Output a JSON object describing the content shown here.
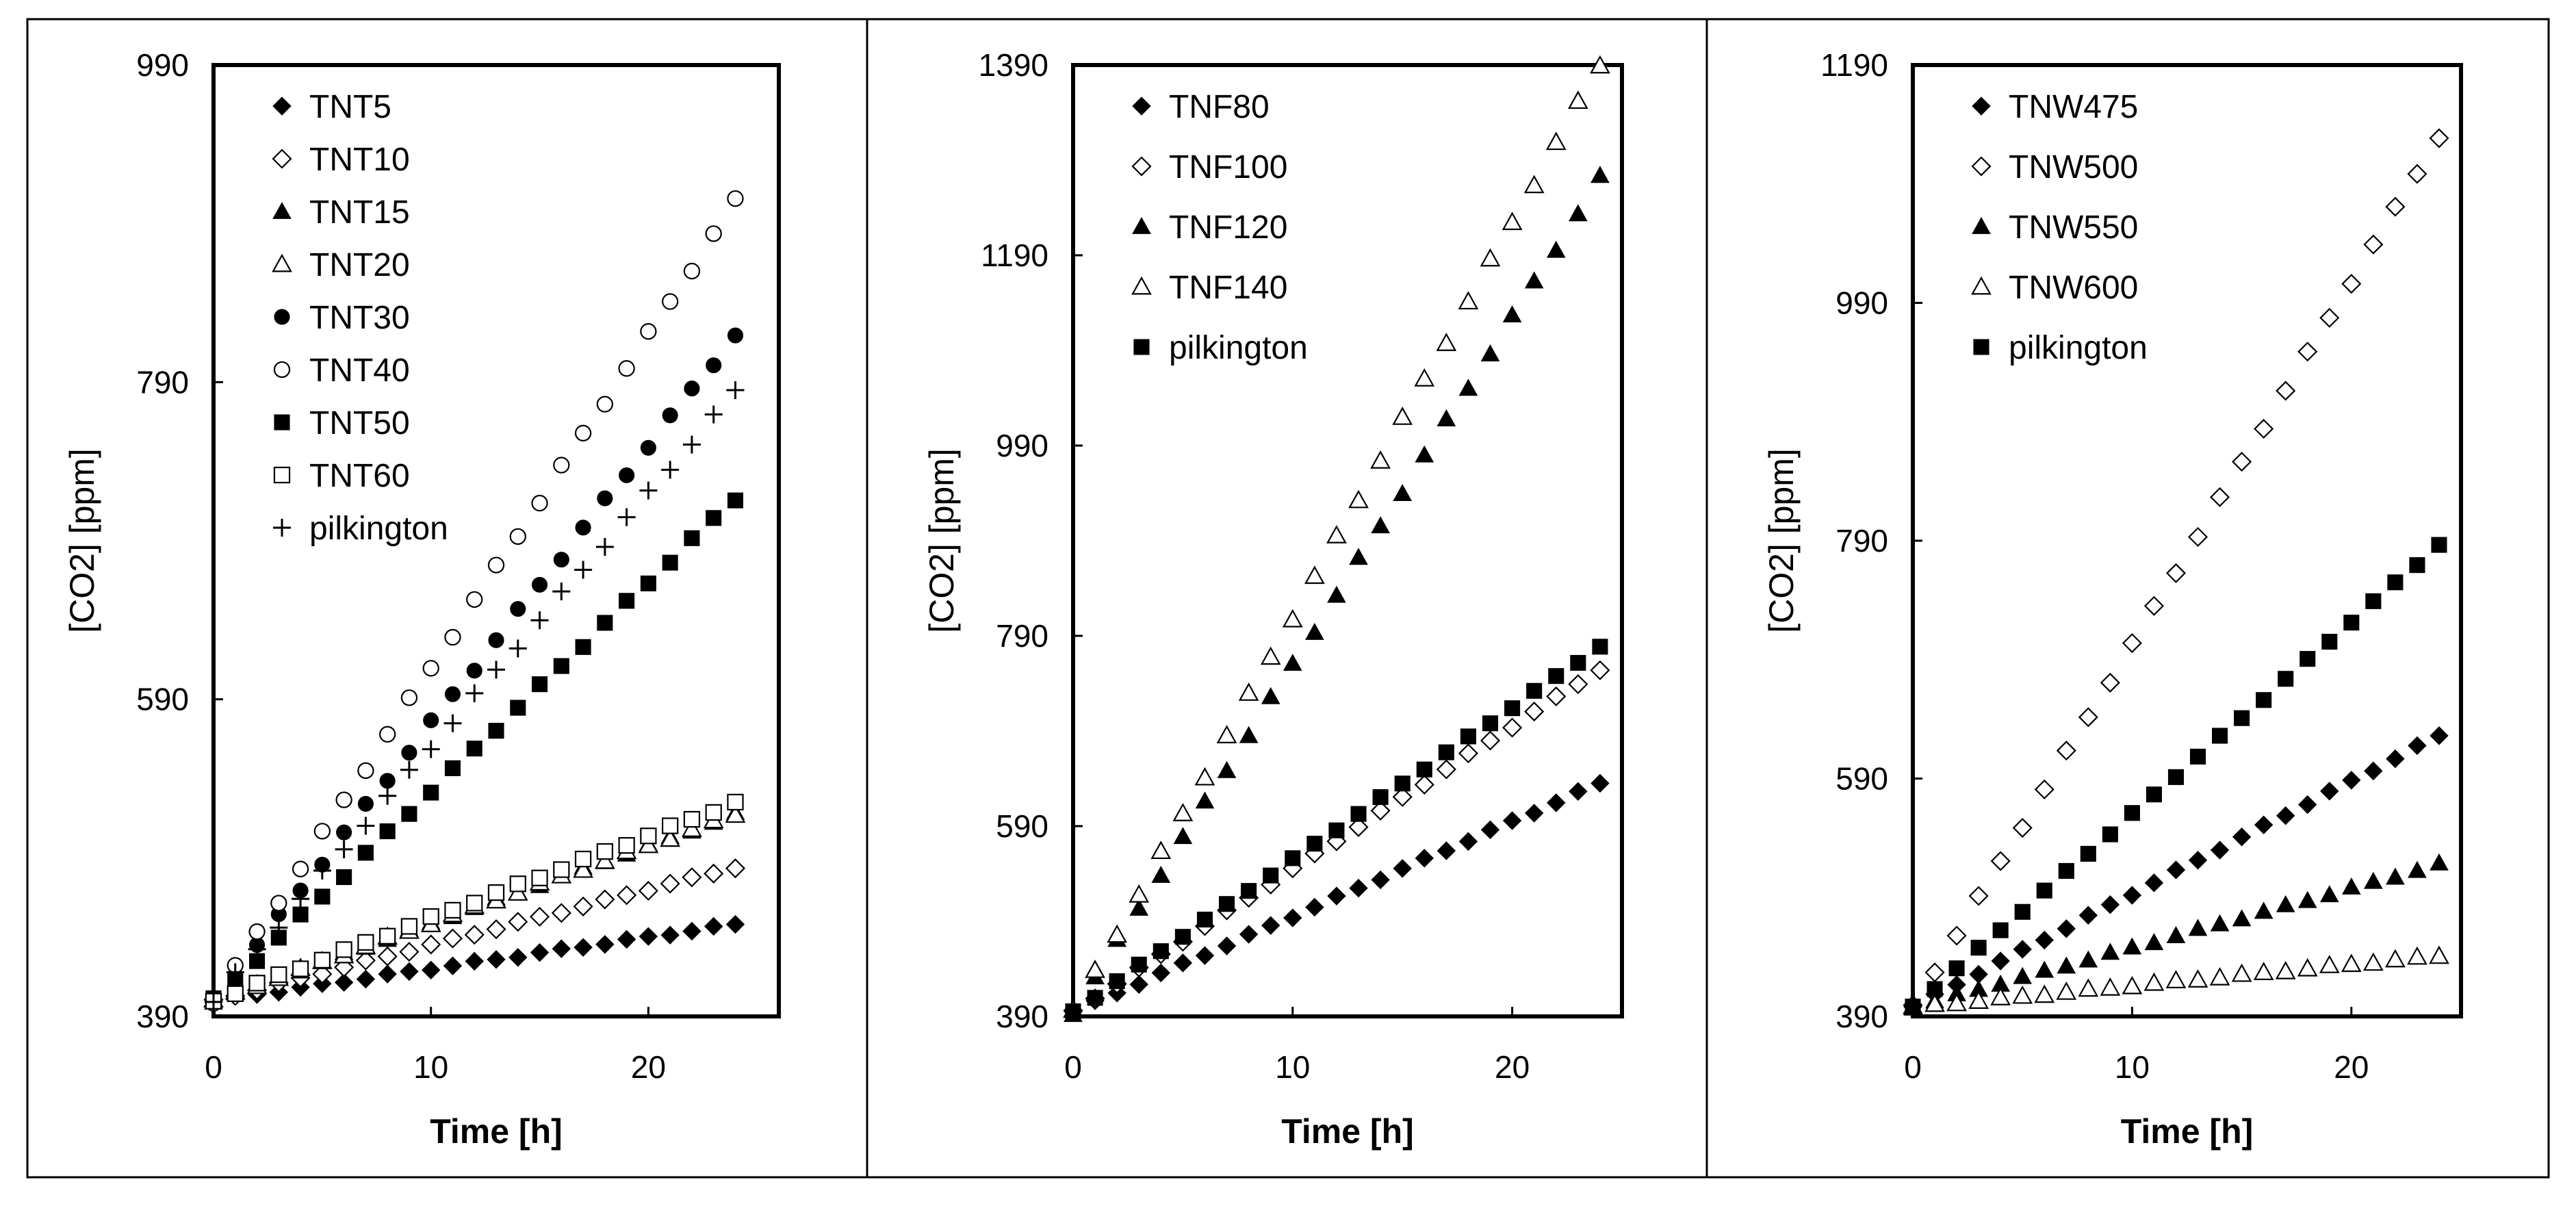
{
  "chart_data": [
    {
      "type": "scatter",
      "title": "",
      "xlabel": "Time [h]",
      "ylabel": "[CO2] [ppm]",
      "xlim": [
        0,
        26
      ],
      "ylim": [
        390,
        990
      ],
      "xticks": [
        0,
        10,
        20
      ],
      "yticks": [
        390,
        590,
        790,
        990
      ],
      "legend_position": "top-left",
      "series": [
        {
          "name": "TNT5",
          "marker": "diamond-filled",
          "slope": 2.0,
          "noise": 0.8
        },
        {
          "name": "TNT10",
          "marker": "diamond-open",
          "slope": 3.5,
          "noise": 0.8
        },
        {
          "name": "TNT15",
          "marker": "triangle-filled",
          "slope": 4.9,
          "noise": 1.0
        },
        {
          "name": "TNT20",
          "marker": "triangle-open",
          "slope": 4.9,
          "noise": 1.0
        },
        {
          "name": "TNT30",
          "marker": "circle-filled",
          "slope": 17.5,
          "noise": 2.0
        },
        {
          "name": "TNT40",
          "marker": "circle-open",
          "slope": 21.0,
          "noise": 2.0
        },
        {
          "name": "TNT50",
          "marker": "square-filled",
          "slope": 13.2,
          "noise": 1.5
        },
        {
          "name": "TNT60",
          "marker": "square-open",
          "slope": 5.2,
          "noise": 1.0
        },
        {
          "name": "pilkington",
          "marker": "plus",
          "slope": 16.0,
          "noise": 2.0
        }
      ],
      "x": [
        0,
        1,
        2,
        3,
        4,
        5,
        6,
        7,
        8,
        9,
        10,
        11,
        12,
        13,
        14,
        15,
        16,
        17,
        18,
        19,
        20,
        21,
        22,
        23,
        24
      ],
      "y0": 400
    },
    {
      "type": "scatter",
      "title": "",
      "xlabel": "Time [h]",
      "ylabel": "[CO2] [ppm]",
      "xlim": [
        0,
        25
      ],
      "ylim": [
        390,
        1390
      ],
      "xticks": [
        0,
        10,
        20
      ],
      "yticks": [
        390,
        590,
        790,
        990,
        1190,
        1390
      ],
      "legend_position": "top-left",
      "series": [
        {
          "name": "TNF80",
          "marker": "diamond-filled",
          "slope": 10.0,
          "noise": 1.5
        },
        {
          "name": "TNF100",
          "marker": "diamond-open",
          "slope": 15.0,
          "noise": 1.5
        },
        {
          "name": "TNF120",
          "marker": "triangle-filled",
          "slope": 36.5,
          "noise": 3.0
        },
        {
          "name": "TNF140",
          "marker": "triangle-open",
          "slope": 41.5,
          "noise": 3.0
        },
        {
          "name": "pilkington",
          "marker": "square-filled",
          "slope": 16.0,
          "noise": 1.5
        }
      ],
      "x": [
        0,
        1,
        2,
        3,
        4,
        5,
        6,
        7,
        8,
        9,
        10,
        11,
        12,
        13,
        14,
        15,
        16,
        17,
        18,
        19,
        20,
        21,
        22,
        23,
        24
      ],
      "y0": 395
    },
    {
      "type": "scatter",
      "title": "",
      "xlabel": "Time [h]",
      "ylabel": "[CO2] [ppm]",
      "xlim": [
        0,
        25
      ],
      "ylim": [
        390,
        1190
      ],
      "xticks": [
        0,
        10,
        20
      ],
      "yticks": [
        390,
        590,
        790,
        990,
        1190
      ],
      "legend_position": "top-left",
      "series": [
        {
          "name": "TNW475",
          "marker": "diamond-filled",
          "slope": 9.5,
          "noise": 1.2
        },
        {
          "name": "TNW500",
          "marker": "diamond-open",
          "slope": 30.5,
          "noise": 2.0
        },
        {
          "name": "TNW550",
          "marker": "triangle-filled",
          "slope": 5.0,
          "noise": 1.0
        },
        {
          "name": "TNW600",
          "marker": "triangle-open",
          "slope": 1.8,
          "noise": 0.8
        },
        {
          "name": "pilkington",
          "marker": "square-filled",
          "slope": 16.2,
          "noise": 1.2
        }
      ],
      "x": [
        0,
        1,
        2,
        3,
        4,
        5,
        6,
        7,
        8,
        9,
        10,
        11,
        12,
        13,
        14,
        15,
        16,
        17,
        18,
        19,
        20,
        21,
        22,
        23,
        24
      ],
      "y0": 398
    }
  ]
}
